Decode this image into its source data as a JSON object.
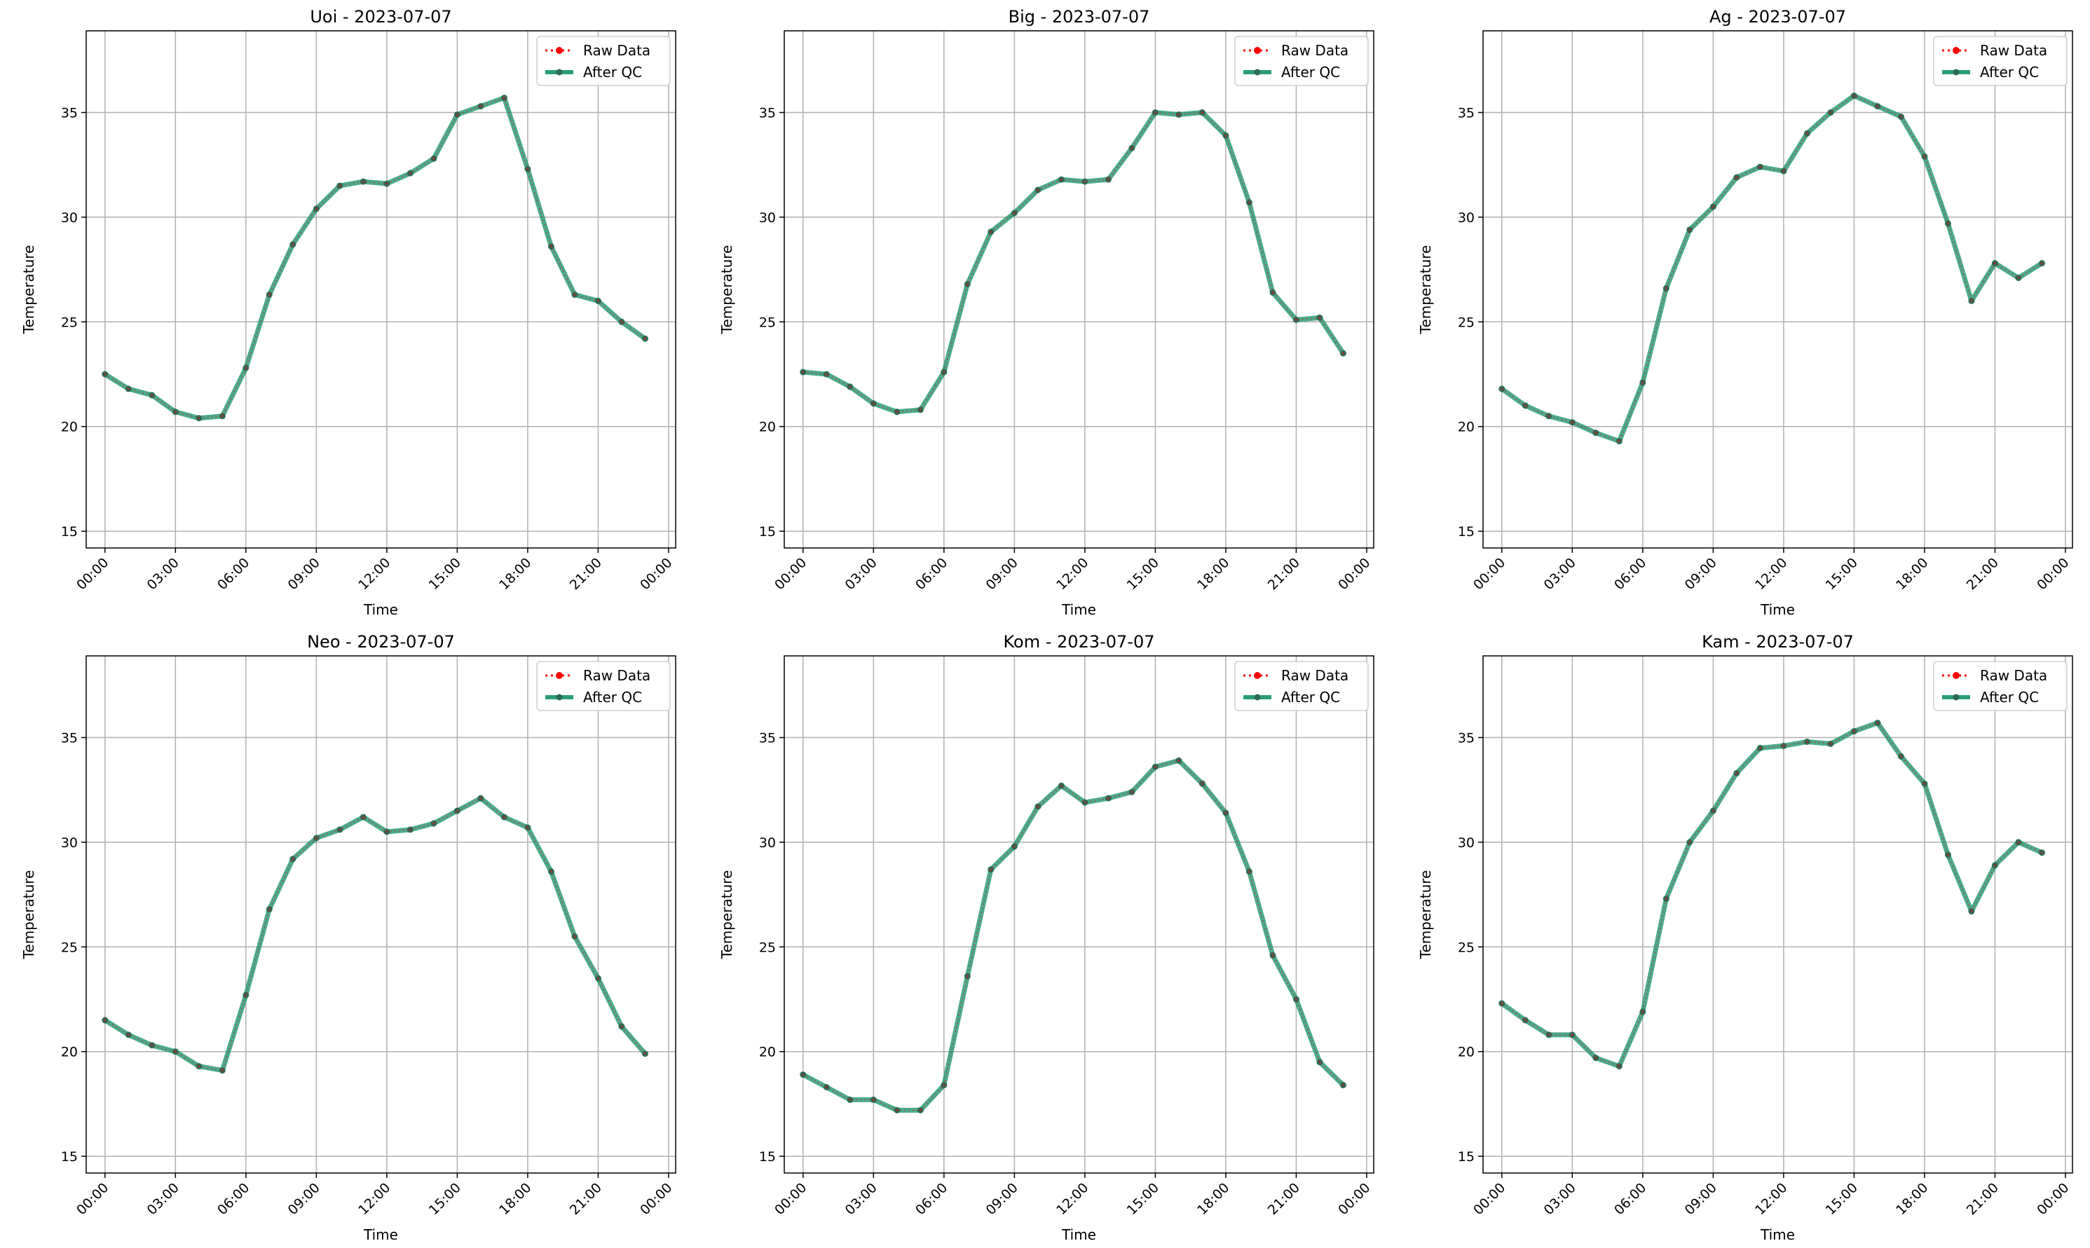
{
  "colors": {
    "raw": "#ff0000",
    "qc": "#2a9d78",
    "qc_marker": "#2e6b57",
    "grid": "#b0b0b0"
  },
  "legend": {
    "raw_label": "Raw Data",
    "qc_label": "After QC",
    "placement": "upper right"
  },
  "chart_data": [
    {
      "type": "line",
      "title": "Uoi - 2023-07-07",
      "xlabel": "Time",
      "ylabel": "Temperature",
      "ylim": [
        14.2,
        38.9
      ],
      "yticks": [
        15,
        20,
        25,
        30,
        35
      ],
      "x_ticks": [
        "00:00",
        "03:00",
        "06:00",
        "09:00",
        "12:00",
        "15:00",
        "18:00",
        "21:00",
        "00:00"
      ],
      "x": [
        "00:00",
        "01:00",
        "02:00",
        "03:00",
        "04:00",
        "05:00",
        "06:00",
        "07:00",
        "08:00",
        "09:00",
        "10:00",
        "11:00",
        "12:00",
        "13:00",
        "14:00",
        "15:00",
        "16:00",
        "17:00",
        "18:00",
        "19:00",
        "20:00",
        "21:00",
        "22:00",
        "23:00"
      ],
      "grid": true,
      "series": [
        {
          "name": "Raw Data",
          "values": [
            22.5,
            21.8,
            21.5,
            20.7,
            20.4,
            20.5,
            22.8,
            26.3,
            28.7,
            30.4,
            31.5,
            31.7,
            31.6,
            32.1,
            32.8,
            34.9,
            35.3,
            35.7,
            32.3,
            28.6,
            26.3,
            26.0,
            25.0,
            24.2
          ]
        },
        {
          "name": "After QC",
          "values": [
            22.5,
            21.8,
            21.5,
            20.7,
            20.4,
            20.5,
            22.8,
            26.3,
            28.7,
            30.4,
            31.5,
            31.7,
            31.6,
            32.1,
            32.8,
            34.9,
            35.3,
            35.7,
            32.3,
            28.6,
            26.3,
            26.0,
            25.0,
            24.2
          ]
        }
      ]
    },
    {
      "type": "line",
      "title": "Big - 2023-07-07",
      "xlabel": "Time",
      "ylabel": "Temperature",
      "ylim": [
        14.2,
        38.9
      ],
      "yticks": [
        15,
        20,
        25,
        30,
        35
      ],
      "x_ticks": [
        "00:00",
        "03:00",
        "06:00",
        "09:00",
        "12:00",
        "15:00",
        "18:00",
        "21:00",
        "00:00"
      ],
      "x": [
        "00:00",
        "01:00",
        "02:00",
        "03:00",
        "04:00",
        "05:00",
        "06:00",
        "07:00",
        "08:00",
        "09:00",
        "10:00",
        "11:00",
        "12:00",
        "13:00",
        "14:00",
        "15:00",
        "16:00",
        "17:00",
        "18:00",
        "19:00",
        "20:00",
        "21:00",
        "22:00",
        "23:00"
      ],
      "grid": true,
      "series": [
        {
          "name": "Raw Data",
          "values": [
            22.6,
            22.5,
            21.9,
            21.1,
            20.7,
            20.8,
            22.6,
            26.8,
            29.3,
            30.2,
            31.3,
            31.8,
            31.7,
            31.8,
            33.3,
            35.0,
            34.9,
            35.0,
            33.9,
            30.7,
            26.4,
            25.1,
            25.2,
            23.5
          ]
        },
        {
          "name": "After QC",
          "values": [
            22.6,
            22.5,
            21.9,
            21.1,
            20.7,
            20.8,
            22.6,
            26.8,
            29.3,
            30.2,
            31.3,
            31.8,
            31.7,
            31.8,
            33.3,
            35.0,
            34.9,
            35.0,
            33.9,
            30.7,
            26.4,
            25.1,
            25.2,
            23.5
          ]
        }
      ]
    },
    {
      "type": "line",
      "title": "Ag - 2023-07-07",
      "xlabel": "Time",
      "ylabel": "Temperature",
      "ylim": [
        14.2,
        38.9
      ],
      "yticks": [
        15,
        20,
        25,
        30,
        35
      ],
      "x_ticks": [
        "00:00",
        "03:00",
        "06:00",
        "09:00",
        "12:00",
        "15:00",
        "18:00",
        "21:00",
        "00:00"
      ],
      "x": [
        "00:00",
        "01:00",
        "02:00",
        "03:00",
        "04:00",
        "05:00",
        "06:00",
        "07:00",
        "08:00",
        "09:00",
        "10:00",
        "11:00",
        "12:00",
        "13:00",
        "14:00",
        "15:00",
        "16:00",
        "17:00",
        "18:00",
        "19:00",
        "20:00",
        "21:00",
        "22:00",
        "23:00"
      ],
      "grid": true,
      "series": [
        {
          "name": "Raw Data",
          "values": [
            21.8,
            21.0,
            20.5,
            20.2,
            19.7,
            19.3,
            22.1,
            26.6,
            29.4,
            30.5,
            31.9,
            32.4,
            32.2,
            34.0,
            35.0,
            35.8,
            35.3,
            34.8,
            32.9,
            29.7,
            26.0,
            27.8,
            27.1,
            27.8
          ]
        },
        {
          "name": "After QC",
          "values": [
            21.8,
            21.0,
            20.5,
            20.2,
            19.7,
            19.3,
            22.1,
            26.6,
            29.4,
            30.5,
            31.9,
            32.4,
            32.2,
            34.0,
            35.0,
            35.8,
            35.3,
            34.8,
            32.9,
            29.7,
            26.0,
            27.8,
            27.1,
            27.8
          ]
        }
      ]
    },
    {
      "type": "line",
      "title": "Neo - 2023-07-07",
      "xlabel": "Time",
      "ylabel": "Temperature",
      "ylim": [
        14.2,
        38.9
      ],
      "yticks": [
        15,
        20,
        25,
        30,
        35
      ],
      "x_ticks": [
        "00:00",
        "03:00",
        "06:00",
        "09:00",
        "12:00",
        "15:00",
        "18:00",
        "21:00",
        "00:00"
      ],
      "x": [
        "00:00",
        "01:00",
        "02:00",
        "03:00",
        "04:00",
        "05:00",
        "06:00",
        "07:00",
        "08:00",
        "09:00",
        "10:00",
        "11:00",
        "12:00",
        "13:00",
        "14:00",
        "15:00",
        "16:00",
        "17:00",
        "18:00",
        "19:00",
        "20:00",
        "21:00",
        "22:00",
        "23:00"
      ],
      "grid": true,
      "series": [
        {
          "name": "Raw Data",
          "values": [
            21.5,
            20.8,
            20.3,
            20.0,
            19.3,
            19.1,
            22.7,
            26.8,
            29.2,
            30.2,
            30.6,
            31.2,
            30.5,
            30.6,
            30.9,
            31.5,
            32.1,
            31.2,
            30.7,
            28.6,
            25.5,
            23.5,
            21.2,
            19.9
          ]
        },
        {
          "name": "After QC",
          "values": [
            21.5,
            20.8,
            20.3,
            20.0,
            19.3,
            19.1,
            22.7,
            26.8,
            29.2,
            30.2,
            30.6,
            31.2,
            30.5,
            30.6,
            30.9,
            31.5,
            32.1,
            31.2,
            30.7,
            28.6,
            25.5,
            23.5,
            21.2,
            19.9
          ]
        }
      ]
    },
    {
      "type": "line",
      "title": "Kom - 2023-07-07",
      "xlabel": "Time",
      "ylabel": "Temperature",
      "ylim": [
        14.2,
        38.9
      ],
      "yticks": [
        15,
        20,
        25,
        30,
        35
      ],
      "x_ticks": [
        "00:00",
        "03:00",
        "06:00",
        "09:00",
        "12:00",
        "15:00",
        "18:00",
        "21:00",
        "00:00"
      ],
      "x": [
        "00:00",
        "01:00",
        "02:00",
        "03:00",
        "04:00",
        "05:00",
        "06:00",
        "07:00",
        "08:00",
        "09:00",
        "10:00",
        "11:00",
        "12:00",
        "13:00",
        "14:00",
        "15:00",
        "16:00",
        "17:00",
        "18:00",
        "19:00",
        "20:00",
        "21:00",
        "22:00",
        "23:00"
      ],
      "grid": true,
      "series": [
        {
          "name": "Raw Data",
          "values": [
            18.9,
            18.3,
            17.7,
            17.7,
            17.2,
            17.2,
            18.4,
            23.6,
            28.7,
            29.8,
            31.7,
            32.7,
            31.9,
            32.1,
            32.4,
            33.6,
            33.9,
            32.8,
            31.4,
            28.6,
            24.6,
            22.5,
            19.5,
            18.4
          ]
        },
        {
          "name": "After QC",
          "values": [
            18.9,
            18.3,
            17.7,
            17.7,
            17.2,
            17.2,
            18.4,
            23.6,
            28.7,
            29.8,
            31.7,
            32.7,
            31.9,
            32.1,
            32.4,
            33.6,
            33.9,
            32.8,
            31.4,
            28.6,
            24.6,
            22.5,
            19.5,
            18.4
          ]
        }
      ]
    },
    {
      "type": "line",
      "title": "Kam - 2023-07-07",
      "xlabel": "Time",
      "ylabel": "Temperature",
      "ylim": [
        14.2,
        38.9
      ],
      "yticks": [
        15,
        20,
        25,
        30,
        35
      ],
      "x_ticks": [
        "00:00",
        "03:00",
        "06:00",
        "09:00",
        "12:00",
        "15:00",
        "18:00",
        "21:00",
        "00:00"
      ],
      "x": [
        "00:00",
        "01:00",
        "02:00",
        "03:00",
        "04:00",
        "05:00",
        "06:00",
        "07:00",
        "08:00",
        "09:00",
        "10:00",
        "11:00",
        "12:00",
        "13:00",
        "14:00",
        "15:00",
        "16:00",
        "17:00",
        "18:00",
        "19:00",
        "20:00",
        "21:00",
        "22:00",
        "23:00"
      ],
      "grid": true,
      "series": [
        {
          "name": "Raw Data",
          "values": [
            22.3,
            21.5,
            20.8,
            20.8,
            19.7,
            19.3,
            21.9,
            27.3,
            30.0,
            31.5,
            33.3,
            34.5,
            34.6,
            34.8,
            34.7,
            35.3,
            35.7,
            34.1,
            32.8,
            29.4,
            26.7,
            28.9,
            30.0,
            29.5
          ]
        },
        {
          "name": "After QC",
          "values": [
            22.3,
            21.5,
            20.8,
            20.8,
            19.7,
            19.3,
            21.9,
            27.3,
            30.0,
            31.5,
            33.3,
            34.5,
            34.6,
            34.8,
            34.7,
            35.3,
            35.7,
            34.1,
            32.8,
            29.4,
            26.7,
            28.9,
            30.0,
            29.5
          ]
        }
      ]
    }
  ]
}
